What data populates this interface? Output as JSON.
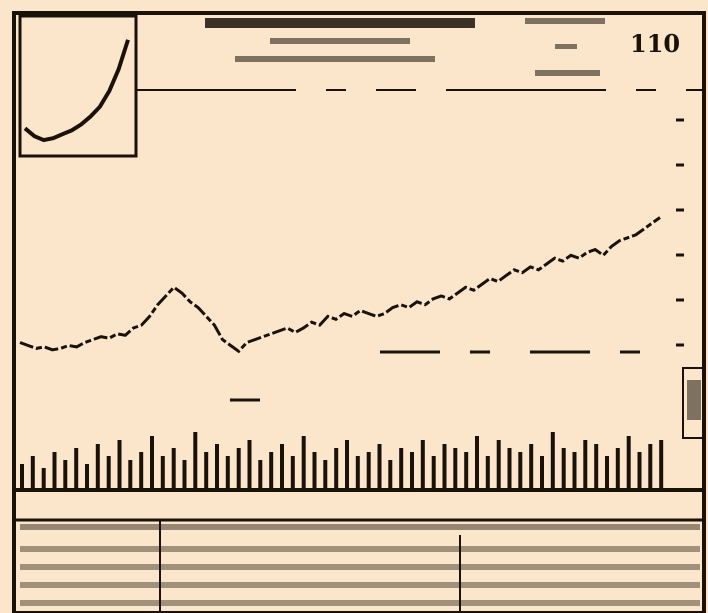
{
  "chart_data": {
    "type": "line",
    "title": "",
    "page_number": "110",
    "header_lines": [],
    "xlabel": "",
    "ylabel": "",
    "x_tick_labels": [
      "",
      "",
      ""
    ],
    "y_tick_labels": [
      "",
      "",
      "",
      "",
      "",
      ""
    ],
    "grid": false,
    "legend": "none",
    "ink_color": "#1a1108",
    "paper_color": "#fbe6cb",
    "series": [
      {
        "values": [
          21,
          20,
          19,
          19.5,
          18.5,
          19,
          20,
          19.5,
          21,
          22,
          23,
          22.5,
          24,
          23.5,
          26,
          27,
          30,
          34,
          37,
          40,
          38,
          35,
          33,
          30,
          27,
          22,
          20,
          18,
          21,
          22,
          23,
          24,
          25,
          26,
          24.5,
          26,
          28,
          27,
          30,
          29,
          31,
          30,
          32,
          31,
          30,
          31,
          33,
          34,
          33,
          35,
          34,
          36,
          37,
          36,
          38,
          40,
          39,
          41,
          43,
          42,
          44,
          46,
          45,
          47,
          46,
          48,
          50,
          49,
          51,
          50,
          52,
          53,
          51,
          54,
          56,
          57,
          58,
          60,
          62,
          64
        ]
      }
    ],
    "volume_values": [
      6,
      8,
      5,
      9,
      7,
      10,
      6,
      11,
      8,
      12,
      7,
      9,
      13,
      8,
      10,
      7,
      14,
      9,
      11,
      8,
      10,
      12,
      7,
      9,
      11,
      8,
      13,
      9,
      7,
      10,
      12,
      8,
      9,
      11,
      7,
      10,
      9,
      12,
      8,
      11,
      10,
      9,
      13,
      8,
      12,
      10,
      9,
      11,
      8,
      14,
      10,
      9,
      12,
      11,
      8,
      10,
      13,
      9,
      11,
      12
    ]
  },
  "inset_chart": {
    "type": "line",
    "values": [
      3,
      2.6,
      2.4,
      2.5,
      2.7,
      2.9,
      3.2,
      3.6,
      4.1,
      4.9,
      6.0,
      7.5
    ]
  },
  "data_table": {
    "header_row": "",
    "rows": [
      "",
      "",
      "",
      ""
    ]
  }
}
